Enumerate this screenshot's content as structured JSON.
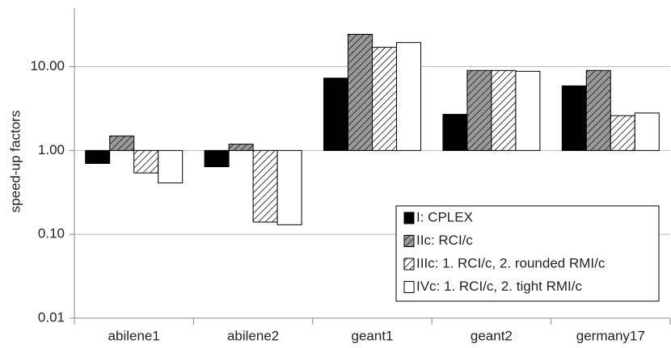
{
  "chart_data": {
    "type": "bar",
    "y_label": "speed-up factors",
    "log_scale": true,
    "grid": true,
    "legend_position": "lower right",
    "categories": [
      "abilene1",
      "abilene2",
      "geant1",
      "geant2",
      "germany17"
    ],
    "series": [
      {
        "name": "I: CPLEX",
        "color": "#000000",
        "hatch": false,
        "values": [
          0.7,
          0.64,
          7.3,
          2.7,
          5.9
        ]
      },
      {
        "name": "IIc: RCI/c",
        "color": "#999999",
        "hatch": true,
        "values": [
          1.49,
          1.19,
          24.3,
          9.0,
          9.0
        ]
      },
      {
        "name": "IIIc: 1. RCI/c, 2. rounded RMI/c",
        "color": "#ffffff",
        "hatch": true,
        "values": [
          0.54,
          0.14,
          17.0,
          9.0,
          2.6
        ]
      },
      {
        "name": "IVc: 1. RCI/c, 2. tight RMI/c",
        "color": "#ffffff",
        "hatch": false,
        "values": [
          0.41,
          0.13,
          19.4,
          8.8,
          2.8
        ]
      }
    ],
    "ylim": [
      0.01,
      50
    ],
    "yticks": [
      {
        "value": 0.01,
        "label": "0.01"
      },
      {
        "value": 0.1,
        "label": "0.10"
      },
      {
        "value": 1,
        "label": "1.00"
      },
      {
        "value": 10,
        "label": "10.00"
      }
    ]
  }
}
